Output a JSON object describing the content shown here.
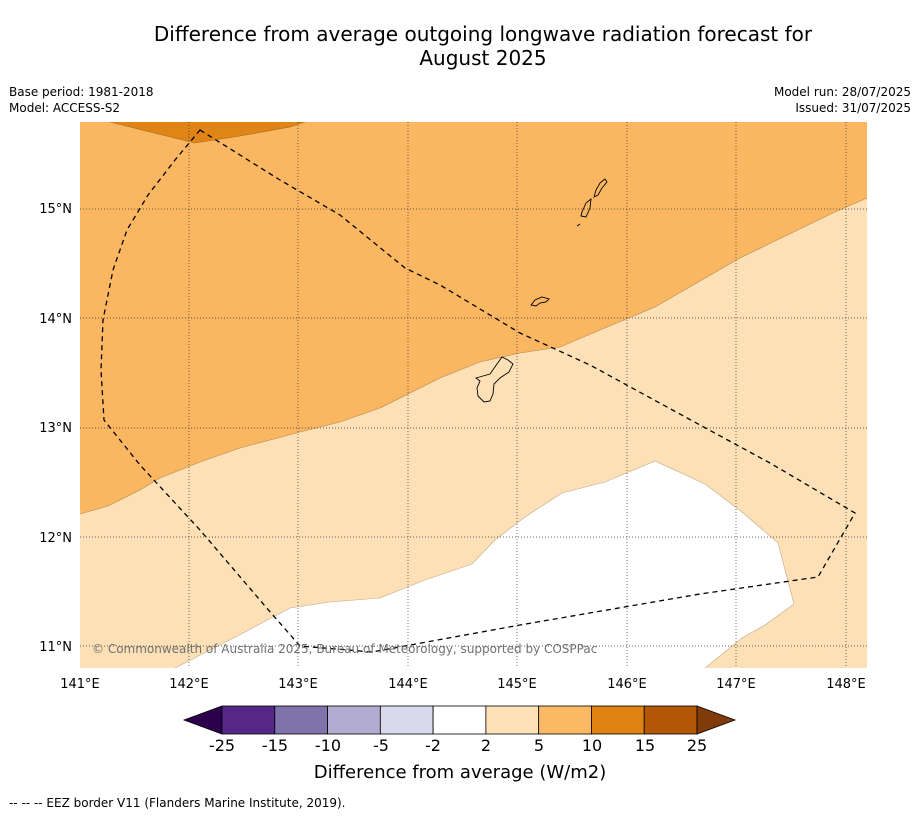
{
  "header": {
    "title_line1": "Difference from average outgoing longwave radiation forecast for",
    "title_line2": "August 2025",
    "base_period": "Base period: 1981-2018",
    "model": "Model: ACCESS-S2",
    "model_run": "Model run: 28/07/2025",
    "issued": "Issued: 31/07/2025"
  },
  "map": {
    "lon_labels": [
      "141°E",
      "142°E",
      "143°E",
      "144°E",
      "145°E",
      "146°E",
      "147°E",
      "148°E"
    ],
    "lat_labels": [
      "15°N",
      "14°N",
      "13°N",
      "12°N",
      "11°N"
    ],
    "copyright": "© Commonwealth of Australia 2025, Bureau of Meteorology, supported by COSPPac",
    "colors": {
      "band_10_15": "#e08415",
      "band_5_10": "#fab661",
      "band_2_5": "#fde0b6",
      "band_neutral": "#ffffff"
    }
  },
  "colorbar": {
    "tick_labels": [
      "-25",
      "-15",
      "-10",
      "-5",
      "-2",
      "2",
      "5",
      "10",
      "15",
      "25"
    ],
    "colors": [
      "#2d004b",
      "#542788",
      "#8073ac",
      "#b2abd2",
      "#d8daeb",
      "#ffffff",
      "#fee0b6",
      "#fdb863",
      "#e08214",
      "#b35806",
      "#7f3b08"
    ],
    "title": "Difference from average (W/m2)"
  },
  "footer": {
    "eez_note": "--  --  -- EEZ border V11 (Flanders Marine Institute, 2019)."
  }
}
